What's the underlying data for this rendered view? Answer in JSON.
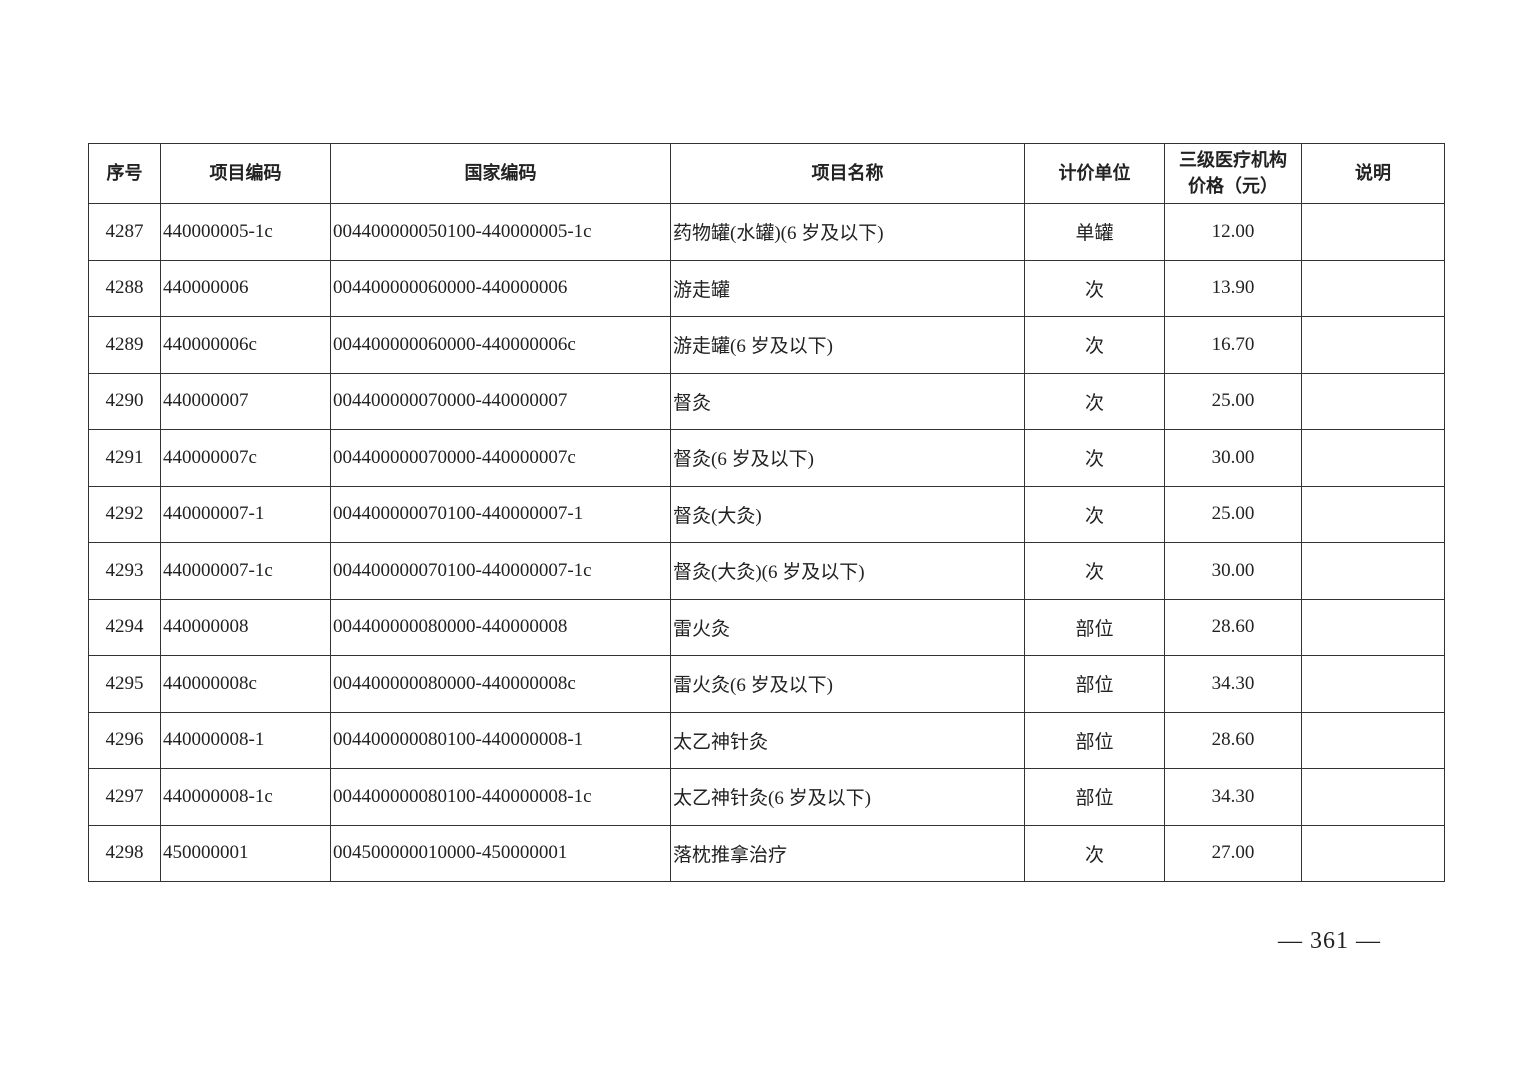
{
  "table": {
    "headers": [
      "序号",
      "项目编码",
      "国家编码",
      "项目名称",
      "计价单位",
      "三级医疗机构\n价格（元）",
      "说明"
    ],
    "rows": [
      [
        "4287",
        "440000005-1c",
        "004400000050100-440000005-1c",
        "药物罐(水罐)(6 岁及以下)",
        "单罐",
        "12.00",
        ""
      ],
      [
        "4288",
        "440000006",
        "004400000060000-440000006",
        "游走罐",
        "次",
        "13.90",
        ""
      ],
      [
        "4289",
        "440000006c",
        "004400000060000-440000006c",
        "游走罐(6 岁及以下)",
        "次",
        "16.70",
        ""
      ],
      [
        "4290",
        "440000007",
        "004400000070000-440000007",
        "督灸",
        "次",
        "25.00",
        ""
      ],
      [
        "4291",
        "440000007c",
        "004400000070000-440000007c",
        "督灸(6 岁及以下)",
        "次",
        "30.00",
        ""
      ],
      [
        "4292",
        "440000007-1",
        "004400000070100-440000007-1",
        "督灸(大灸)",
        "次",
        "25.00",
        ""
      ],
      [
        "4293",
        "440000007-1c",
        "004400000070100-440000007-1c",
        "督灸(大灸)(6 岁及以下)",
        "次",
        "30.00",
        ""
      ],
      [
        "4294",
        "440000008",
        "004400000080000-440000008",
        "雷火灸",
        "部位",
        "28.60",
        ""
      ],
      [
        "4295",
        "440000008c",
        "004400000080000-440000008c",
        "雷火灸(6 岁及以下)",
        "部位",
        "34.30",
        ""
      ],
      [
        "4296",
        "440000008-1",
        "004400000080100-440000008-1",
        "太乙神针灸",
        "部位",
        "28.60",
        ""
      ],
      [
        "4297",
        "440000008-1c",
        "004400000080100-440000008-1c",
        "太乙神针灸(6 岁及以下)",
        "部位",
        "34.30",
        ""
      ],
      [
        "4298",
        "450000001",
        "004500000010000-450000001",
        "落枕推拿治疗",
        "次",
        "27.00",
        ""
      ]
    ]
  },
  "page_number": "— 361 —"
}
